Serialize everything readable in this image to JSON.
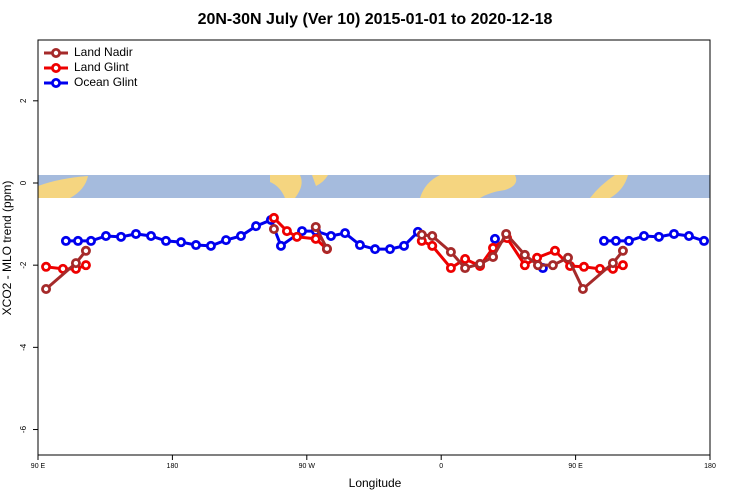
{
  "chart_data": {
    "type": "line",
    "title": "20N-30N July (Ver 10)   2015-01-01 to 2020-12-18",
    "x_label": "Longitude",
    "y_label": "XCO2 - MLO trend (ppm)",
    "xlim": [
      90,
      540
    ],
    "xticks": [
      {
        "value": 90,
        "label": "90 E"
      },
      180,
      {
        "value": 270,
        "label": "90 W"
      },
      {
        "value": 360,
        "label": "0"
      },
      {
        "value": 450,
        "label": "90 E"
      },
      {
        "value": 540,
        "label": "180"
      }
    ],
    "ylim": [
      -6.62,
      3.48
    ],
    "yticks": [
      -6,
      -4,
      -2,
      0,
      2
    ],
    "legend": "top-left",
    "series": [
      {
        "name": "Land Nadir",
        "color": "#a52a2a",
        "x": [
          95.4,
          115.4,
          122.1,
          null,
          248,
          null,
          276,
          283.5,
          null,
          347,
          354,
          366.5,
          376,
          386,
          394.7,
          403.5,
          416,
          424.8,
          434.8,
          444.9,
          454.9,
          475,
          481.7
        ],
        "values": [
          -2.58,
          -1.95,
          -1.65,
          null,
          -1.12,
          null,
          -1.07,
          -1.6,
          null,
          -1.26,
          -1.29,
          -1.68,
          -2.07,
          -1.97,
          -1.8,
          -1.24,
          -1.75,
          -2.0,
          -2.0,
          -1.82,
          -2.58,
          -1.95,
          -1.65
        ]
      },
      {
        "name": "Land Glint",
        "color": "#ee0000",
        "x": [
          95.4,
          106.7,
          115.4,
          122.1,
          null,
          248,
          256.7,
          263.4,
          276,
          283.5,
          null,
          347,
          354,
          366.5,
          376,
          386,
          394.7,
          404.1,
          416,
          424.2,
          436.2,
          446.3,
          455.6,
          466.3,
          475,
          481.7
        ],
        "values": [
          -2.04,
          -2.09,
          -2.09,
          -2.0,
          null,
          -0.85,
          -1.17,
          -1.31,
          -1.36,
          -1.61,
          null,
          -1.41,
          -1.53,
          -2.07,
          -1.85,
          -2.02,
          -1.58,
          -1.34,
          -2.0,
          -1.82,
          -1.65,
          -2.02,
          -2.04,
          -2.09,
          -2.09,
          -2.0
        ]
      },
      {
        "name": "Ocean Glint",
        "color": "#0000ee",
        "x": [
          108.7,
          116.8,
          125.5,
          135.5,
          145.6,
          155.6,
          165.7,
          175.7,
          185.8,
          195.8,
          205.8,
          215.9,
          225.9,
          236,
          246,
          252.7,
          266.8,
          276.1,
          286.2,
          295.6,
          305.6,
          315.7,
          325.7,
          335.1,
          344.4,
          null,
          396,
          null,
          428.1,
          null,
          469,
          477,
          485.7,
          495.8,
          505.8,
          515.9,
          525.9,
          536
        ],
        "values": [
          -1.41,
          -1.41,
          -1.41,
          -1.29,
          -1.31,
          -1.24,
          -1.29,
          -1.41,
          -1.44,
          -1.51,
          -1.53,
          -1.39,
          -1.29,
          -1.05,
          -0.9,
          -1.53,
          -1.17,
          -1.17,
          -1.29,
          -1.22,
          -1.51,
          -1.61,
          -1.61,
          -1.53,
          -1.19,
          null,
          -1.36,
          null,
          -2.07,
          null,
          -1.41,
          -1.41,
          -1.41,
          -1.29,
          -1.31,
          -1.24,
          -1.29,
          -1.41
        ]
      }
    ]
  }
}
